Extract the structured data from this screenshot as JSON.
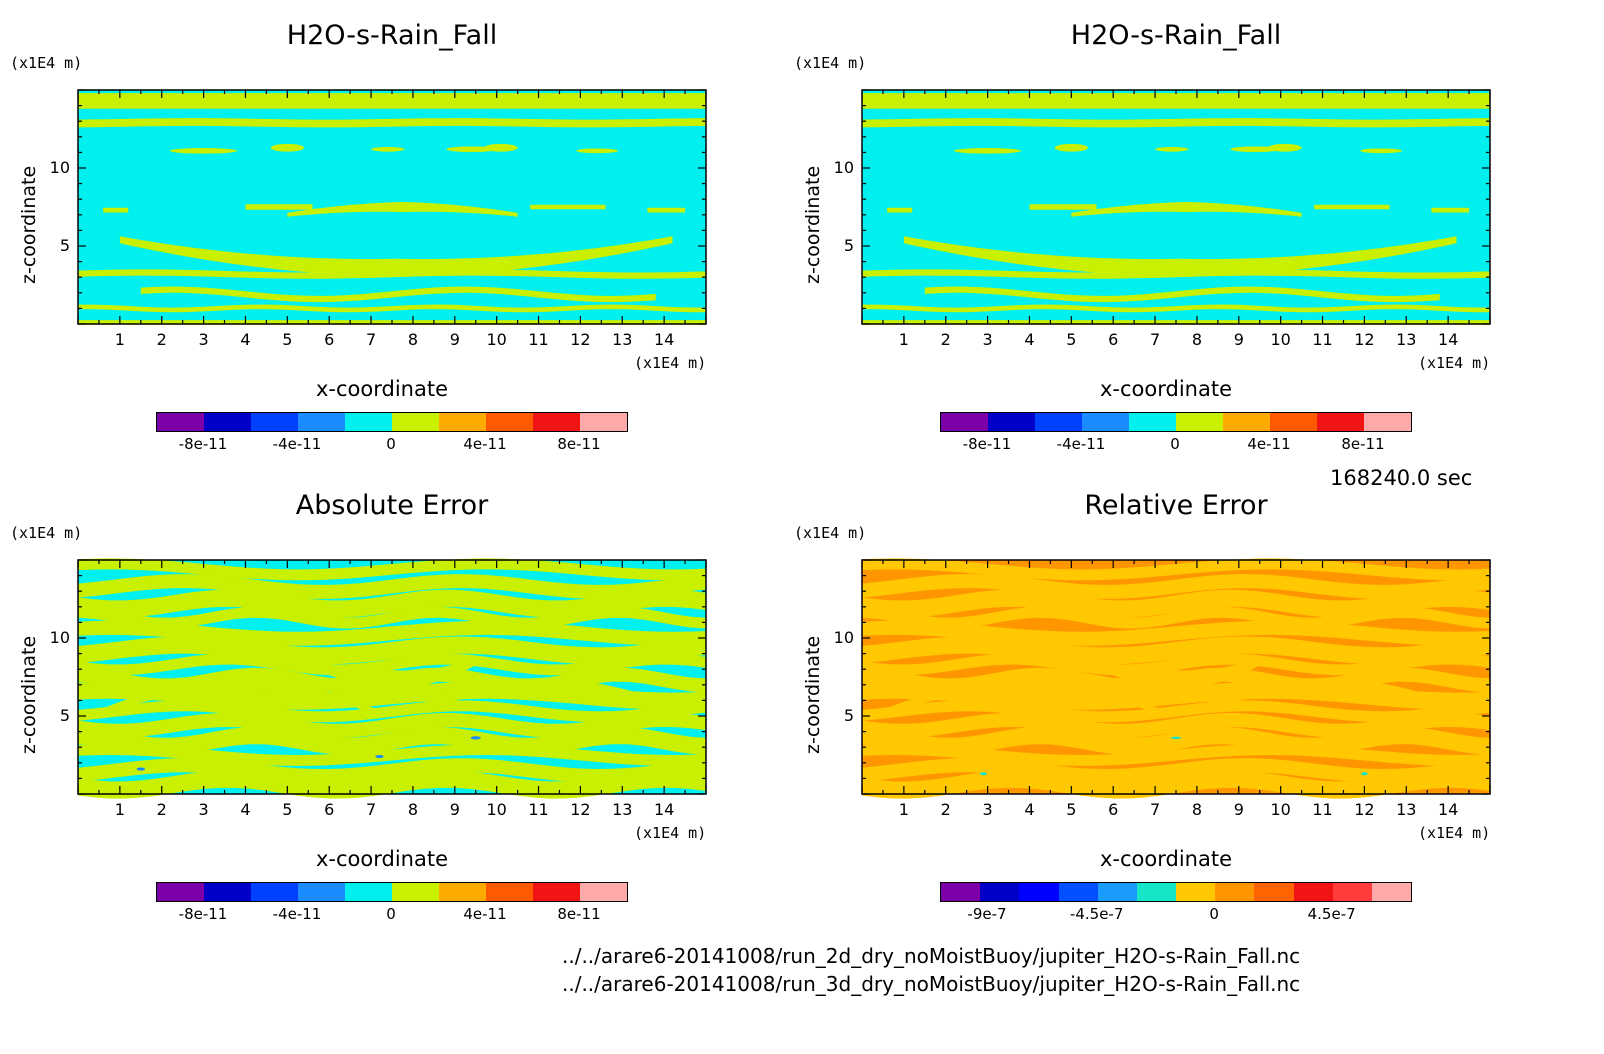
{
  "panels": [
    {
      "title": "H2O-s-Rain_Fall",
      "unit_z": "(x1E4 m)",
      "unit_x": "(x1E4 m)",
      "xlabel": "x-coordinate",
      "zlabel": "z-coordinate",
      "x_ticks": [
        "1",
        "2",
        "3",
        "4",
        "5",
        "6",
        "7",
        "8",
        "9",
        "10",
        "11",
        "12",
        "13",
        "14"
      ],
      "z_ticks": [
        "5",
        "10"
      ],
      "colorbar": {
        "colors": [
          "#7b00a8",
          "#0000c8",
          "#0040ff",
          "#1a8cff",
          "#00f0f0",
          "#c8f000",
          "#ffaa00",
          "#ff5a00",
          "#f01414",
          "#ffaaaa"
        ],
        "labels": [
          "-8e-11",
          "-4e-11",
          "0",
          "4e-11",
          "8e-11"
        ]
      }
    },
    {
      "title": "H2O-s-Rain_Fall",
      "unit_z": "(x1E4 m)",
      "unit_x": "(x1E4 m)",
      "xlabel": "x-coordinate",
      "zlabel": "z-coordinate",
      "x_ticks": [
        "1",
        "2",
        "3",
        "4",
        "5",
        "6",
        "7",
        "8",
        "9",
        "10",
        "11",
        "12",
        "13",
        "14"
      ],
      "z_ticks": [
        "5",
        "10"
      ],
      "colorbar": {
        "colors": [
          "#7b00a8",
          "#0000c8",
          "#0040ff",
          "#1a8cff",
          "#00f0f0",
          "#c8f000",
          "#ffaa00",
          "#ff5a00",
          "#f01414",
          "#ffaaaa"
        ],
        "labels": [
          "-8e-11",
          "-4e-11",
          "0",
          "4e-11",
          "8e-11"
        ]
      }
    },
    {
      "title": "Absolute Error",
      "unit_z": "(x1E4 m)",
      "unit_x": "(x1E4 m)",
      "xlabel": "x-coordinate",
      "zlabel": "z-coordinate",
      "x_ticks": [
        "1",
        "2",
        "3",
        "4",
        "5",
        "6",
        "7",
        "8",
        "9",
        "10",
        "11",
        "12",
        "13",
        "14"
      ],
      "z_ticks": [
        "5",
        "10"
      ],
      "colorbar": {
        "colors": [
          "#7b00a8",
          "#0000c8",
          "#0040ff",
          "#1a8cff",
          "#00f0f0",
          "#c8f000",
          "#ffaa00",
          "#ff5a00",
          "#f01414",
          "#ffaaaa"
        ],
        "labels": [
          "-8e-11",
          "-4e-11",
          "0",
          "4e-11",
          "8e-11"
        ]
      }
    },
    {
      "title": "Relative Error",
      "unit_z": "(x1E4 m)",
      "unit_x": "(x1E4 m)",
      "xlabel": "x-coordinate",
      "zlabel": "z-coordinate",
      "x_ticks": [
        "1",
        "2",
        "3",
        "4",
        "5",
        "6",
        "7",
        "8",
        "9",
        "10",
        "11",
        "12",
        "13",
        "14"
      ],
      "z_ticks": [
        "5",
        "10"
      ],
      "colorbar": {
        "colors": [
          "#7b00a8",
          "#0000c8",
          "#0000ff",
          "#0050ff",
          "#1a9cff",
          "#16e6c8",
          "#ffc800",
          "#ff9600",
          "#ff6400",
          "#f01414",
          "#ff3c3c",
          "#ffaaaa"
        ],
        "labels": [
          "-9e-7",
          "-4.5e-7",
          "0",
          "4.5e-7"
        ]
      }
    }
  ],
  "time_label": "168240.0 sec",
  "file_paths": [
    "../../arare6-20141008/run_2d_dry_noMoistBuoy/jupiter_H2O-s-Rain_Fall.nc",
    "../../arare6-20141008/run_3d_dry_noMoistBuoy/jupiter_H2O-s-Rain_Fall.nc"
  ],
  "chart_data": [
    {
      "type": "heatmap",
      "title": "H2O-s-Rain_Fall",
      "xlabel": "x-coordinate",
      "ylabel": "z-coordinate",
      "x_unit": "(x1E4 m)",
      "z_unit": "(x1E4 m)",
      "xlim": [
        0,
        15
      ],
      "zlim": [
        0,
        15
      ],
      "background_level": "0",
      "contour_level": "4e-11",
      "colorbar_labels": [
        "-8e-11",
        "-4e-11",
        "0",
        "4e-11",
        "8e-11"
      ]
    },
    {
      "type": "heatmap",
      "title": "H2O-s-Rain_Fall",
      "xlabel": "x-coordinate",
      "ylabel": "z-coordinate",
      "x_unit": "(x1E4 m)",
      "z_unit": "(x1E4 m)",
      "xlim": [
        0,
        15
      ],
      "zlim": [
        0,
        15
      ],
      "background_level": "0",
      "contour_level": "4e-11",
      "colorbar_labels": [
        "-8e-11",
        "-4e-11",
        "0",
        "4e-11",
        "8e-11"
      ]
    },
    {
      "type": "heatmap",
      "title": "Absolute Error",
      "xlabel": "x-coordinate",
      "ylabel": "z-coordinate",
      "x_unit": "(x1E4 m)",
      "z_unit": "(x1E4 m)",
      "xlim": [
        0,
        15
      ],
      "zlim": [
        0,
        15
      ],
      "colorbar_labels": [
        "-8e-11",
        "-4e-11",
        "0",
        "4e-11",
        "8e-11"
      ]
    },
    {
      "type": "heatmap",
      "title": "Relative Error",
      "xlabel": "x-coordinate",
      "ylabel": "z-coordinate",
      "x_unit": "(x1E4 m)",
      "z_unit": "(x1E4 m)",
      "xlim": [
        0,
        15
      ],
      "zlim": [
        0,
        15
      ],
      "colorbar_labels": [
        "-9e-7",
        "-4.5e-7",
        "0",
        "4.5e-7"
      ]
    }
  ]
}
